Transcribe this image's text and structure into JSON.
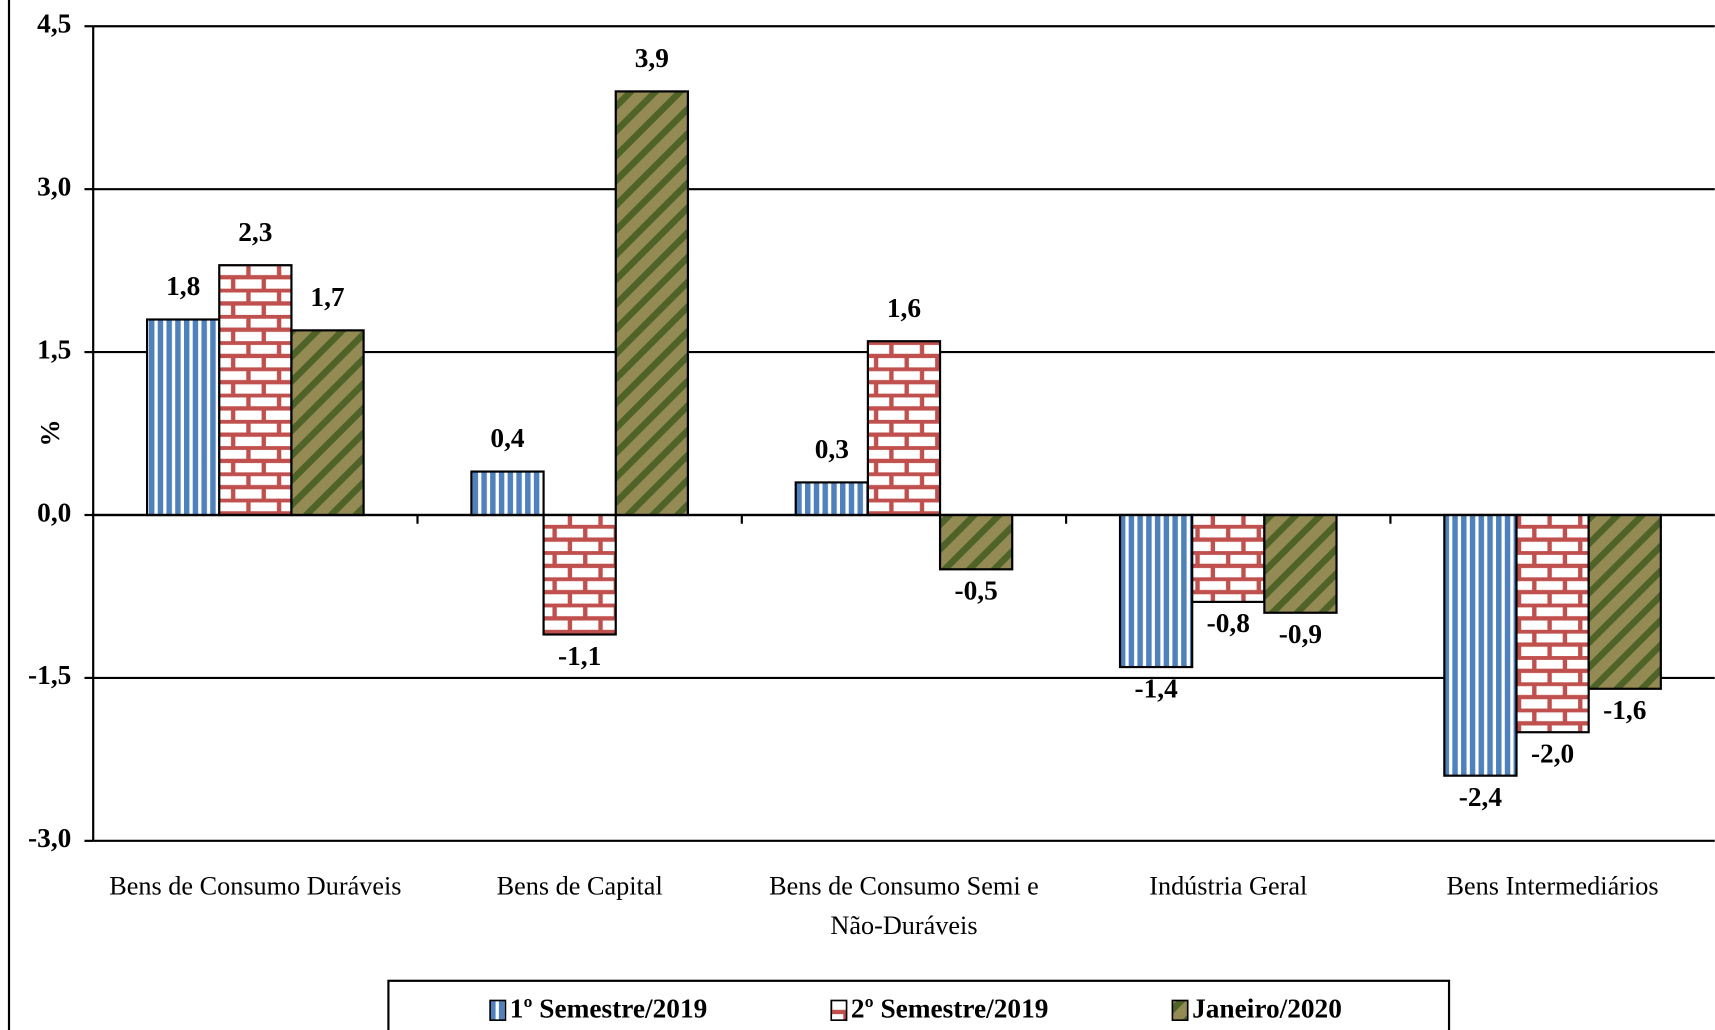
{
  "chart_data": {
    "type": "bar",
    "y_label": "%",
    "categories": [
      "Bens de Consumo Duráveis",
      "Bens de Capital",
      "Bens de Consumo Semi e Não-Duráveis",
      "Indústria Geral",
      "Bens Intermediários"
    ],
    "series": [
      {
        "name": "1º Semestre/2019",
        "color": "#4f81bd",
        "values": [
          1.8,
          0.4,
          0.3,
          -1.4,
          -2.4
        ],
        "value_labels": [
          "1,8",
          "0,4",
          "0,3",
          "-1,4",
          "-2,4"
        ]
      },
      {
        "name": "2º Semestre/2019",
        "color": "#c0504d",
        "values": [
          2.3,
          -1.1,
          1.6,
          -0.8,
          -2.0
        ],
        "value_labels": [
          "2,3",
          "-1,1",
          "1,6",
          "-0,8",
          "-2,0"
        ]
      },
      {
        "name": "Janeiro/2020",
        "color": "#948a54",
        "values": [
          1.7,
          3.9,
          -0.5,
          -0.9,
          -1.6
        ],
        "value_labels": [
          "1,7",
          "3,9",
          "-0,5",
          "-0,9",
          "-1,6"
        ]
      }
    ],
    "ylim": [
      -3,
      4.5
    ],
    "yticks": [
      {
        "value": -3,
        "label": "-3,0"
      },
      {
        "value": -1.5,
        "label": "-1,5"
      },
      {
        "value": 0,
        "label": "0,0"
      },
      {
        "value": 1.5,
        "label": "1,5"
      },
      {
        "value": 3,
        "label": "3,0"
      },
      {
        "value": 4.5,
        "label": "4,5"
      }
    ],
    "grid": true
  }
}
